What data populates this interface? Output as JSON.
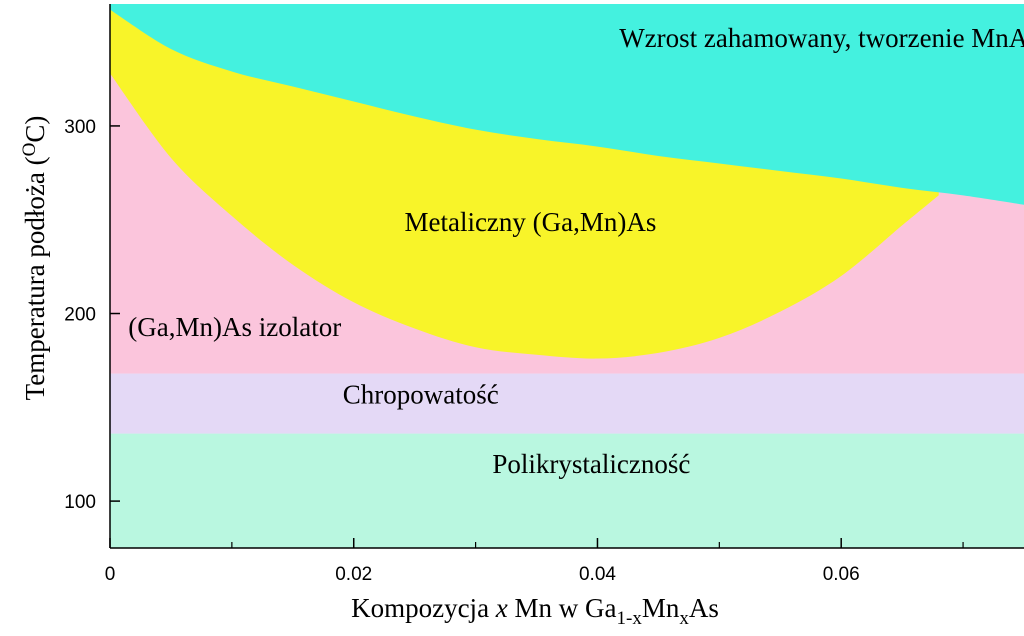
{
  "chart_data": {
    "type": "area",
    "title": "",
    "xlabel": {
      "prefix": "Kompozycja ",
      "italic": "x",
      "middle": " Mn w Ga",
      "sub1": "1-x",
      "mid2": "Mn",
      "sub2": "x",
      "suffix": "As"
    },
    "ylabel": {
      "prefix": "Temperatura podłoża (",
      "sup": "O",
      "suffix": "C)"
    },
    "xlim": [
      0,
      0.075
    ],
    "ylim": [
      75,
      365
    ],
    "x_ticks": [
      {
        "value": 0,
        "label": "0"
      },
      {
        "value": 0.02,
        "label": "0.02"
      },
      {
        "value": 0.04,
        "label": "0.04"
      },
      {
        "value": 0.06,
        "label": "0.06"
      }
    ],
    "x_minor_ticks": [
      0.01,
      0.03,
      0.05,
      0.07
    ],
    "y_ticks": [
      {
        "value": 100,
        "label": "100"
      },
      {
        "value": 200,
        "label": "200"
      },
      {
        "value": 300,
        "label": "300"
      }
    ],
    "grid": false,
    "regions": [
      {
        "name": "Polikrystaliczność",
        "label": "Polikrystaliczność",
        "color": "#b9f7e0",
        "t_min": 75,
        "t_max": 136,
        "label_at": [
          0.0395,
          115
        ]
      },
      {
        "name": "Chropowatość",
        "label": "Chropowatość",
        "color": "#e4d9f6",
        "t_min": 136,
        "t_max": 168,
        "label_at": [
          0.0255,
          152
        ]
      },
      {
        "name": "(Ga,Mn)As izolator",
        "label": "(Ga,Mn)As izolator",
        "color": "#fbc5dc",
        "t_min": 168,
        "label_at": [
          0.0015,
          188
        ]
      },
      {
        "name": "Metaliczny (Ga,Mn)As",
        "label": "Metaliczny (Ga,Mn)As",
        "color": "#f8f429",
        "boundary": [
          [
            0,
            328
          ],
          [
            0.005,
            283
          ],
          [
            0.01,
            252
          ],
          [
            0.015,
            226
          ],
          [
            0.02,
            206
          ],
          [
            0.025,
            192
          ],
          [
            0.03,
            182
          ],
          [
            0.035,
            178
          ],
          [
            0.04,
            176
          ],
          [
            0.045,
            179
          ],
          [
            0.05,
            187
          ],
          [
            0.055,
            201
          ],
          [
            0.06,
            220
          ],
          [
            0.065,
            247
          ],
          [
            0.068,
            263
          ]
        ],
        "label_at": [
          0.0345,
          244
        ]
      },
      {
        "name": "Wzrost zahamowany, tworzenie MnAs",
        "label": "Wzrost zahamowany, tworzenie MnAs",
        "color": "#44f1df",
        "boundary": [
          [
            0,
            362
          ],
          [
            0.005,
            341
          ],
          [
            0.01,
            329
          ],
          [
            0.015,
            321
          ],
          [
            0.02,
            313
          ],
          [
            0.025,
            305
          ],
          [
            0.03,
            298
          ],
          [
            0.035,
            293
          ],
          [
            0.04,
            289
          ],
          [
            0.045,
            284
          ],
          [
            0.05,
            280
          ],
          [
            0.055,
            276
          ],
          [
            0.06,
            272
          ],
          [
            0.065,
            267
          ],
          [
            0.07,
            263
          ],
          [
            0.075,
            258
          ]
        ],
        "label_at": [
          0.059,
          342
        ]
      }
    ]
  }
}
